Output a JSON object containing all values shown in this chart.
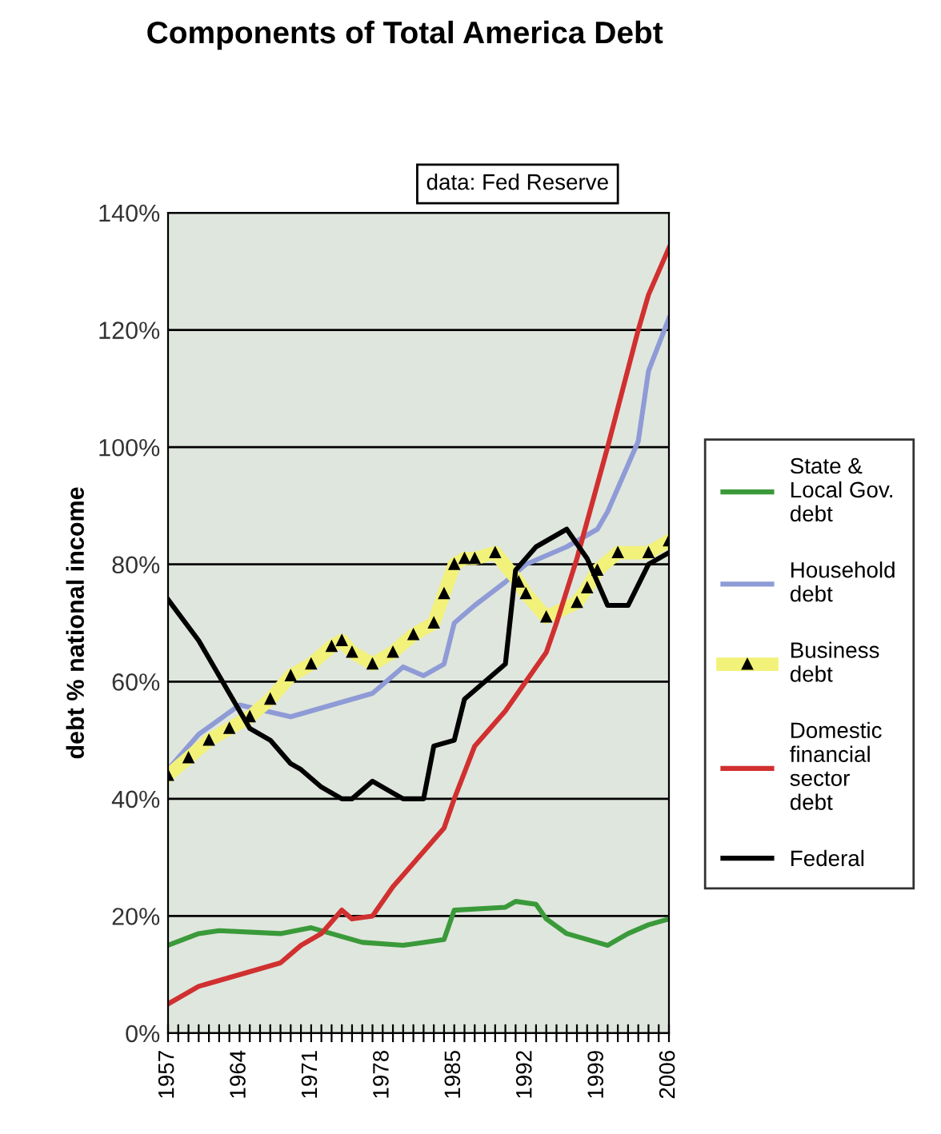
{
  "chart_data": {
    "type": "line",
    "title": "Components of Total America Debt",
    "subtitle": "data: Fed Reserve",
    "ylabel": "debt % national income",
    "xlim": [
      1957,
      2006
    ],
    "xticks": [
      1957,
      {
        "value": 1958,
        "label": null
      },
      {
        "value": 1959,
        "label": null
      },
      {
        "value": 1960,
        "label": null
      },
      {
        "value": 1961,
        "label": null
      },
      {
        "value": 1962,
        "label": null
      },
      {
        "value": 1963,
        "label": null
      },
      1964,
      {
        "value": 1965,
        "label": null
      },
      {
        "value": 1966,
        "label": null
      },
      {
        "value": 1967,
        "label": null
      },
      {
        "value": 1968,
        "label": null
      },
      {
        "value": 1969,
        "label": null
      },
      {
        "value": 1970,
        "label": null
      },
      1971,
      {
        "value": 1972,
        "label": null
      },
      {
        "value": 1973,
        "label": null
      },
      {
        "value": 1974,
        "label": null
      },
      {
        "value": 1975,
        "label": null
      },
      {
        "value": 1976,
        "label": null
      },
      {
        "value": 1977,
        "label": null
      },
      1978,
      {
        "value": 1979,
        "label": null
      },
      {
        "value": 1980,
        "label": null
      },
      {
        "value": 1981,
        "label": null
      },
      {
        "value": 1982,
        "label": null
      },
      {
        "value": 1983,
        "label": null
      },
      {
        "value": 1984,
        "label": null
      },
      1985,
      {
        "value": 1986,
        "label": null
      },
      {
        "value": 1987,
        "label": null
      },
      {
        "value": 1988,
        "label": null
      },
      {
        "value": 1989,
        "label": null
      },
      {
        "value": 1990,
        "label": null
      },
      {
        "value": 1991,
        "label": null
      },
      1992,
      {
        "value": 1993,
        "label": null
      },
      {
        "value": 1994,
        "label": null
      },
      {
        "value": 1995,
        "label": null
      },
      {
        "value": 1996,
        "label": null
      },
      {
        "value": 1997,
        "label": null
      },
      {
        "value": 1998,
        "label": null
      },
      1999,
      {
        "value": 2000,
        "label": null
      },
      {
        "value": 2001,
        "label": null
      },
      {
        "value": 2002,
        "label": null
      },
      {
        "value": 2003,
        "label": null
      },
      {
        "value": 2004,
        "label": null
      },
      {
        "value": 2005,
        "label": null
      },
      2006
    ],
    "ylim": [
      0,
      140
    ],
    "yticks": [
      {
        "value": 0,
        "label": "0%"
      },
      {
        "value": 20,
        "label": "20%"
      },
      {
        "value": 40,
        "label": "40%"
      },
      {
        "value": 60,
        "label": "60%"
      },
      {
        "value": 80,
        "label": "80%"
      },
      {
        "value": 100,
        "label": "100%"
      },
      {
        "value": 120,
        "label": "120%"
      },
      {
        "value": 140,
        "label": "140%"
      }
    ],
    "grid": "y",
    "legend": "right",
    "line_style": "solid",
    "series": [
      {
        "name": "State & Local Gov. debt",
        "color": "#3a9a3a",
        "x": [
          1957,
          1960,
          1962,
          1968,
          1971,
          1974,
          1976,
          1980,
          1982,
          1984,
          1985,
          1990,
          1991,
          1993,
          1994,
          1996,
          2000,
          2002,
          2004,
          2006
        ],
        "values": [
          15,
          17,
          17.5,
          17,
          18,
          16.5,
          15.5,
          15,
          15.5,
          16,
          21,
          21.5,
          22.5,
          22,
          19.5,
          17,
          15,
          17,
          18.5,
          19.5
        ]
      },
      {
        "name": "Household debt",
        "color": "#8f9bd6",
        "x": [
          1957,
          1960,
          1964,
          1969,
          1977,
          1980,
          1982,
          1984,
          1985,
          1987,
          1990,
          1992,
          1996,
          1999,
          2000,
          2003,
          2004,
          2006
        ],
        "values": [
          45,
          51,
          56,
          54,
          58,
          62.5,
          61,
          63,
          70,
          73,
          77,
          80,
          83,
          86,
          89,
          101,
          113,
          122
        ]
      },
      {
        "name": "Business debt",
        "color": "#f2f27a",
        "marker": "triangle",
        "x": [
          1957,
          1959,
          1961,
          1963,
          1965,
          1967,
          1969,
          1971,
          1973,
          1974,
          1975,
          1977,
          1979,
          1981,
          1983,
          1984,
          1985,
          1986,
          1987,
          1989,
          1991.3,
          1992,
          1994,
          1997,
          1998,
          1999,
          2001,
          2004,
          2006
        ],
        "values": [
          44,
          47,
          50,
          52,
          54,
          57,
          61,
          63,
          66,
          67,
          65,
          63,
          65,
          68,
          70,
          75,
          80,
          81,
          81,
          82,
          77,
          75,
          71,
          73.5,
          76,
          79,
          82,
          82,
          84
        ]
      },
      {
        "name": "Domestic financial sector debt",
        "color": "#d03030",
        "x": [
          1957,
          1960,
          1964,
          1968,
          1970,
          1972,
          1974,
          1975,
          1977,
          1979,
          1982,
          1984,
          1985,
          1987,
          1990,
          1992,
          1994,
          1995,
          1997,
          2000,
          2003,
          2004,
          2006
        ],
        "values": [
          5,
          8,
          10,
          12,
          15,
          17,
          21,
          19.5,
          20,
          25,
          31,
          35,
          40,
          49,
          55,
          60,
          65,
          70,
          81,
          100,
          120,
          126,
          134
        ]
      },
      {
        "name": "Federal",
        "color": "#000000",
        "x": [
          1957,
          1960,
          1963,
          1965,
          1967,
          1969,
          1970,
          1972,
          1974,
          1975,
          1977,
          1979,
          1980,
          1982,
          1983,
          1985,
          1986,
          1988,
          1990,
          1991,
          1993,
          1996,
          1998,
          2000,
          2002,
          2004,
          2006
        ],
        "values": [
          74,
          67,
          58,
          52,
          50,
          46,
          45,
          42,
          40,
          40,
          43,
          41,
          40,
          40,
          49,
          50,
          57,
          60,
          63,
          79,
          83,
          86,
          81,
          73,
          73,
          80,
          82
        ]
      }
    ]
  }
}
